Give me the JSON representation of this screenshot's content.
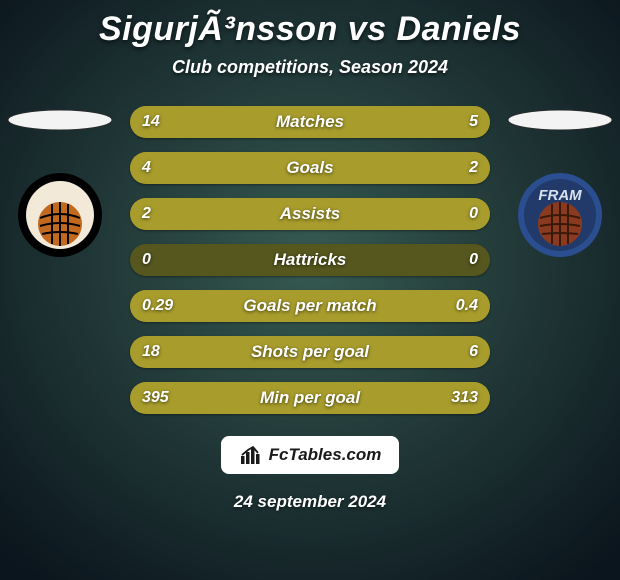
{
  "title": "SigurjÃ³nsson vs Daniels",
  "subtitle": "Club competitions, Season 2024",
  "background": {
    "top_stop": "#0e1820",
    "mid_stop": "#203b3f",
    "bottom_stop": "#0e1820",
    "radial_center": "#365a51",
    "radial_edge": "#0b151d"
  },
  "teams": {
    "left": {
      "ellipse_color": "#f3f3f3",
      "badge": {
        "outer": "#000000",
        "inner_bg": "#f2e9d8",
        "ball_lines": "#000000",
        "ball_fill": "#c1691e"
      }
    },
    "right": {
      "ellipse_color": "#f3f3f3",
      "badge": {
        "outer_ring": "#2a4e8f",
        "inner_ring": "#223a6a",
        "text": "FRAM",
        "text_color": "#d8e1ee",
        "ball_fill": "#8a3a1e",
        "ball_lines": "#3a1908"
      }
    }
  },
  "bars": {
    "track_color": "#55571e",
    "left_color": "#a79c2c",
    "right_color": "#a79c2c",
    "rows": [
      {
        "label": "Matches",
        "left_text": "14",
        "right_text": "5",
        "left_pct": 74,
        "right_pct": 26
      },
      {
        "label": "Goals",
        "left_text": "4",
        "right_text": "2",
        "left_pct": 67,
        "right_pct": 33
      },
      {
        "label": "Assists",
        "left_text": "2",
        "right_text": "0",
        "left_pct": 100,
        "right_pct": 0
      },
      {
        "label": "Hattricks",
        "left_text": "0",
        "right_text": "0",
        "left_pct": 0,
        "right_pct": 0
      },
      {
        "label": "Goals per match",
        "left_text": "0.29",
        "right_text": "0.4",
        "left_pct": 42,
        "right_pct": 58
      },
      {
        "label": "Shots per goal",
        "left_text": "18",
        "right_text": "6",
        "left_pct": 75,
        "right_pct": 25
      },
      {
        "label": "Min per goal",
        "left_text": "395",
        "right_text": "313",
        "left_pct": 56,
        "right_pct": 44
      }
    ]
  },
  "footer": {
    "brand": "FcTables.com",
    "brand_bg": "#ffffff",
    "brand_fg": "#1a1a1a",
    "date": "24 september 2024"
  }
}
